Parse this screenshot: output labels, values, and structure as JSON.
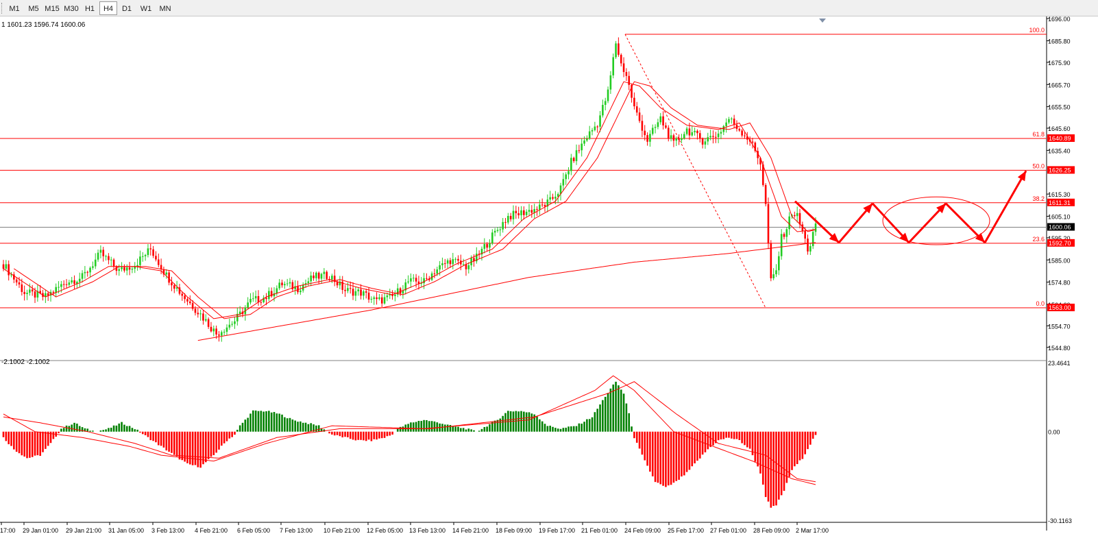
{
  "toolbar": {
    "timeframes": [
      "M1",
      "M5",
      "M15",
      "M30",
      "H1",
      "H4",
      "D1",
      "W1",
      "MN"
    ],
    "active": "H4"
  },
  "info_line": "1 1601.23 1596.74 1600.06",
  "indicator_line": "-2.1002 -2.1002",
  "colors": {
    "bull": "#22cc22",
    "bear": "#ff0000",
    "hist_up": "#008000",
    "hist_down": "#ff0000",
    "line": "#ff0000",
    "current_price": "#808080"
  },
  "chart_data": [
    {
      "type": "candlestick",
      "title": "",
      "price_axis": {
        "range": [
          1540.0,
          1697.0
        ],
        "ticks": [
          "1696.00",
          "1685.80",
          "1675.90",
          "1665.70",
          "1655.50",
          "1645.60",
          "1635.40",
          "1615.30",
          "1605.10",
          "1595.20",
          "1585.00",
          "1574.80",
          "1564.60",
          "1554.70",
          "1544.80"
        ]
      },
      "time_axis": {
        "labels": [
          "17:00",
          "29 Jan 01:00",
          "29 Jan 21:00",
          "31 Jan 05:00",
          "3 Feb 13:00",
          "4 Feb 21:00",
          "6 Feb 05:00",
          "7 Feb 13:00",
          "10 Feb 21:00",
          "12 Feb 05:00",
          "13 Feb 13:00",
          "14 Feb 21:00",
          "18 Feb 09:00",
          "19 Feb 17:00",
          "21 Feb 01:00",
          "24 Feb 09:00",
          "25 Feb 17:00",
          "27 Feb 01:00",
          "28 Feb 09:00",
          "2 Mar 17:00"
        ]
      },
      "fibonacci": [
        {
          "level": "100.0",
          "price": "",
          "value": 1688.8
        },
        {
          "level": "61.8",
          "price": "1640.89",
          "value": 1640.89
        },
        {
          "level": "50.0",
          "price": "1626.25",
          "value": 1626.25
        },
        {
          "level": "38.2",
          "price": "1611.31",
          "value": 1611.31
        },
        {
          "level": "23.6",
          "price": "1592.70",
          "value": 1592.7
        },
        {
          "level": "0.0",
          "price": "1563.00",
          "value": 1563.0
        }
      ],
      "current_price": {
        "label": "1600.06",
        "value": 1600.06
      },
      "anchors": [
        [
          0,
          1583
        ],
        [
          8,
          1570
        ],
        [
          16,
          1568
        ],
        [
          24,
          1575
        ],
        [
          30,
          1577
        ],
        [
          37,
          1588
        ],
        [
          44,
          1580
        ],
        [
          50,
          1583
        ],
        [
          56,
          1590
        ],
        [
          62,
          1578
        ],
        [
          68,
          1569
        ],
        [
          75,
          1560
        ],
        [
          81,
          1551
        ],
        [
          88,
          1557
        ],
        [
          94,
          1566
        ],
        [
          100,
          1568
        ],
        [
          106,
          1574
        ],
        [
          112,
          1572
        ],
        [
          118,
          1577
        ],
        [
          124,
          1578
        ],
        [
          130,
          1571
        ],
        [
          136,
          1570
        ],
        [
          142,
          1566
        ],
        [
          148,
          1568
        ],
        [
          154,
          1575
        ],
        [
          160,
          1575
        ],
        [
          164,
          1580
        ],
        [
          170,
          1585
        ],
        [
          176,
          1582
        ],
        [
          180,
          1586
        ],
        [
          186,
          1596
        ],
        [
          192,
          1605
        ],
        [
          198,
          1607
        ],
        [
          204,
          1609
        ],
        [
          208,
          1612
        ],
        [
          212,
          1618
        ],
        [
          216,
          1630
        ],
        [
          221,
          1640
        ],
        [
          226,
          1648
        ],
        [
          230,
          1662
        ],
        [
          233,
          1685
        ],
        [
          235,
          1675
        ],
        [
          237,
          1670
        ],
        [
          240,
          1655
        ],
        [
          245,
          1640
        ],
        [
          250,
          1650
        ],
        [
          255,
          1638
        ],
        [
          260,
          1645
        ],
        [
          266,
          1640
        ],
        [
          272,
          1643
        ],
        [
          276,
          1650
        ],
        [
          280,
          1645
        ],
        [
          284,
          1640
        ],
        [
          288,
          1630
        ],
        [
          290,
          1610
        ],
        [
          292,
          1575
        ],
        [
          294,
          1580
        ],
        [
          296,
          1595
        ],
        [
          298,
          1600
        ],
        [
          300,
          1607
        ],
        [
          302,
          1605
        ],
        [
          304,
          1598
        ],
        [
          306,
          1590
        ],
        [
          307,
          1592
        ],
        [
          308,
          1597
        ],
        [
          309,
          1600
        ]
      ],
      "ma_anchors": [
        [
          0,
          1581
        ],
        [
          16,
          1568
        ],
        [
          30,
          1575
        ],
        [
          40,
          1582
        ],
        [
          50,
          1582
        ],
        [
          60,
          1580
        ],
        [
          70,
          1568
        ],
        [
          80,
          1558
        ],
        [
          90,
          1560
        ],
        [
          100,
          1568
        ],
        [
          112,
          1573
        ],
        [
          124,
          1576
        ],
        [
          136,
          1572
        ],
        [
          148,
          1569
        ],
        [
          160,
          1575
        ],
        [
          172,
          1583
        ],
        [
          186,
          1590
        ],
        [
          198,
          1604
        ],
        [
          210,
          1612
        ],
        [
          222,
          1632
        ],
        [
          230,
          1652
        ],
        [
          236,
          1667
        ],
        [
          242,
          1665
        ],
        [
          250,
          1655
        ],
        [
          260,
          1647
        ],
        [
          272,
          1645
        ],
        [
          280,
          1648
        ],
        [
          288,
          1632
        ],
        [
          296,
          1605
        ],
        [
          302,
          1598
        ],
        [
          309,
          1599
        ]
      ],
      "ma_slow_anchors": [
        [
          74,
          1548
        ],
        [
          140,
          1562
        ],
        [
          200,
          1577
        ],
        [
          240,
          1584
        ],
        [
          276,
          1588
        ],
        [
          309,
          1593
        ]
      ],
      "trendline_anchors": [
        [
          74,
          1548
        ],
        [
          309,
          1588
        ]
      ],
      "projection_path": [
        [
          1160,
          1612
        ],
        [
          1224,
          1593
        ],
        [
          1273,
          1611
        ],
        [
          1326,
          1593
        ],
        [
          1380,
          1611
        ],
        [
          1437,
          1593
        ],
        [
          1497,
          1626
        ]
      ],
      "projection_ellipse": {
        "cx": 1366,
        "cy": 1603,
        "rx": 78,
        "ry": 11
      }
    },
    {
      "type": "histogram",
      "title": "",
      "value_axis": {
        "range": [
          -30.1163,
          23.4641
        ],
        "ticks": [
          "23.4641",
          "0.00",
          "-30.1163"
        ]
      },
      "anchors": [
        [
          0,
          -2
        ],
        [
          4,
          -6
        ],
        [
          9,
          -9
        ],
        [
          14,
          -8
        ],
        [
          18,
          -4
        ],
        [
          22,
          1
        ],
        [
          27,
          3
        ],
        [
          31,
          1
        ],
        [
          35,
          0
        ],
        [
          40,
          1
        ],
        [
          45,
          3
        ],
        [
          50,
          1
        ],
        [
          55,
          -2
        ],
        [
          60,
          -5
        ],
        [
          65,
          -8
        ],
        [
          70,
          -11
        ],
        [
          75,
          -12
        ],
        [
          80,
          -8
        ],
        [
          85,
          -3
        ],
        [
          88,
          -1
        ],
        [
          90,
          2
        ],
        [
          95,
          7
        ],
        [
          100,
          7
        ],
        [
          105,
          6
        ],
        [
          110,
          4
        ],
        [
          115,
          3
        ],
        [
          120,
          2
        ],
        [
          125,
          -1
        ],
        [
          130,
          -2
        ],
        [
          135,
          -3
        ],
        [
          140,
          -3
        ],
        [
          145,
          -2
        ],
        [
          148,
          -1
        ],
        [
          150,
          1
        ],
        [
          155,
          3
        ],
        [
          160,
          4
        ],
        [
          166,
          3
        ],
        [
          170,
          2
        ],
        [
          176,
          1
        ],
        [
          180,
          0
        ],
        [
          184,
          2
        ],
        [
          188,
          4
        ],
        [
          192,
          7
        ],
        [
          197,
          7
        ],
        [
          202,
          6
        ],
        [
          207,
          2
        ],
        [
          212,
          1
        ],
        [
          218,
          2
        ],
        [
          224,
          5
        ],
        [
          229,
          12
        ],
        [
          233,
          17
        ],
        [
          236,
          13
        ],
        [
          238,
          6
        ],
        [
          240,
          -2
        ],
        [
          244,
          -10
        ],
        [
          248,
          -17
        ],
        [
          252,
          -19
        ],
        [
          256,
          -17
        ],
        [
          260,
          -14
        ],
        [
          264,
          -10
        ],
        [
          268,
          -6
        ],
        [
          272,
          -3
        ],
        [
          276,
          -2
        ],
        [
          280,
          -3
        ],
        [
          284,
          -6
        ],
        [
          288,
          -14
        ],
        [
          290,
          -22
        ],
        [
          292,
          -26
        ],
        [
          294,
          -25
        ],
        [
          297,
          -20
        ],
        [
          300,
          -13
        ],
        [
          304,
          -9
        ],
        [
          309,
          -1
        ]
      ],
      "signal_anchors": [
        [
          0,
          6
        ],
        [
          12,
          0
        ],
        [
          30,
          -2
        ],
        [
          48,
          -5
        ],
        [
          60,
          -8
        ],
        [
          80,
          -10
        ],
        [
          100,
          -4
        ],
        [
          125,
          2
        ],
        [
          160,
          1
        ],
        [
          200,
          4
        ],
        [
          225,
          14
        ],
        [
          232,
          19
        ],
        [
          240,
          14
        ],
        [
          255,
          0
        ],
        [
          270,
          -5
        ],
        [
          285,
          -10
        ],
        [
          300,
          -16
        ],
        [
          309,
          -18
        ]
      ],
      "signal2_anchors": [
        [
          0,
          5
        ],
        [
          14,
          3
        ],
        [
          32,
          0
        ],
        [
          50,
          -4
        ],
        [
          64,
          -8
        ],
        [
          82,
          -9
        ],
        [
          104,
          -2
        ],
        [
          128,
          1
        ],
        [
          162,
          1
        ],
        [
          202,
          5
        ],
        [
          230,
          13
        ],
        [
          240,
          17
        ],
        [
          256,
          6
        ],
        [
          272,
          -4
        ],
        [
          290,
          -8
        ],
        [
          302,
          -16
        ],
        [
          309,
          -17
        ]
      ]
    }
  ]
}
